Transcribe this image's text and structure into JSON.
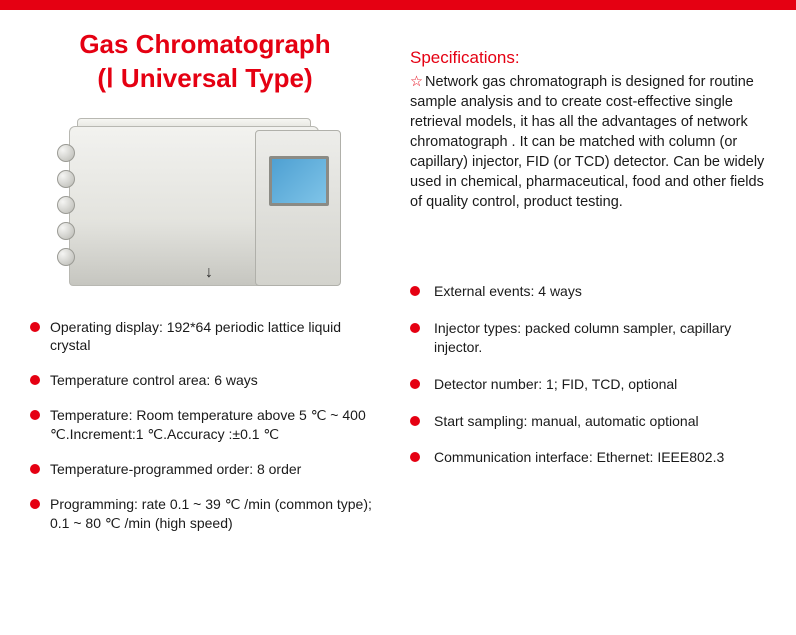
{
  "colors": {
    "accent": "#e50012",
    "text": "#1a1a1a",
    "background": "#ffffff"
  },
  "title": {
    "line1": "Gas Chromatograph",
    "line2": "(Ⅰ Universal Type)"
  },
  "specifications": {
    "label": "Specifications:",
    "star": "☆",
    "text": "Network gas chromatograph is designed for routine sample analysis and to create cost-effective single retrieval models, it has all the advantages of network chromatograph . It can be matched with column (or capillary) injector, FID (or TCD) detector. Can be widely used in chemical, pharmaceutical, food and other fields of quality control, product testing."
  },
  "left_bullets": [
    "Operating display: 192*64 periodic lattice liquid crystal",
    "Temperature control area: 6 ways",
    "Temperature: Room temperature above 5 ℃ ~ 400 ℃.Increment:1 ℃.Accuracy :±0.1 ℃",
    "Temperature-programmed order: 8 order",
    "Programming: rate 0.1 ~ 39 ℃ /min (common type); 0.1 ~ 80 ℃ /min (high speed)"
  ],
  "right_bullets": [
    "External events: 4 ways",
    "Injector types: packed column sampler, capillary injector.",
    "Detector number: 1; FID, TCD, optional",
    "Start sampling: manual, automatic optional",
    "Communication interface: Ethernet: IEEE802.3"
  ],
  "device_arrow": "↓"
}
